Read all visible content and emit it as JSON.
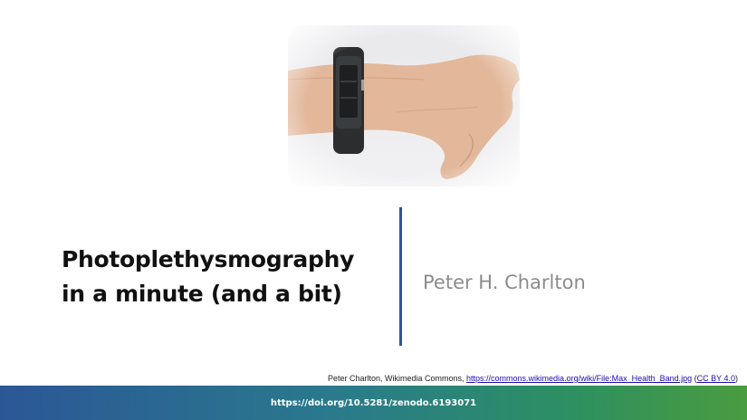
{
  "slide": {
    "title_lines": [
      "Photoplethysmography",
      "in a minute (and a bit)"
    ],
    "author": "Peter H. Charlton"
  },
  "credit": {
    "prefix": "Peter Charlton, Wikimedia Commons, ",
    "url_text": "https://commons.wikimedia.org/wiki/File:Max_Health_Band.jpg",
    "mid": " (",
    "license_text": "CC BY 4.0",
    "suffix": ")"
  },
  "footer": {
    "doi": "https://doi.org/10.5281/zenodo.6193071"
  },
  "colors": {
    "accent_divider": "#2f5597",
    "footer_gradient_start": "#2b5797",
    "footer_gradient_end": "#4a9c3f",
    "author_text": "#8c8c8c"
  }
}
